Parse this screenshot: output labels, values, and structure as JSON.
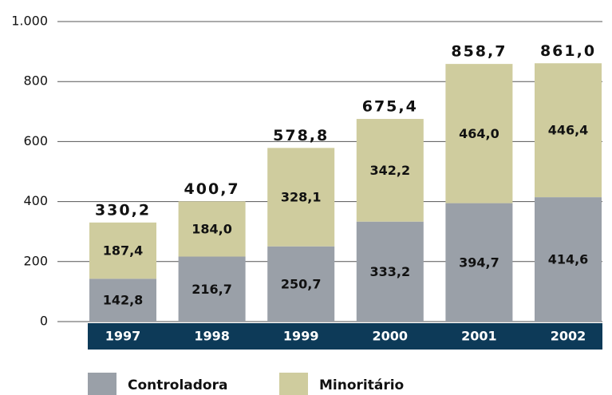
{
  "chart_data": {
    "type": "stacked_bar",
    "categories": [
      "1997",
      "1998",
      "1999",
      "2000",
      "2001",
      "2002"
    ],
    "series": [
      {
        "name": "Controladora",
        "color": "#9aa0a8",
        "values": [
          142.8,
          216.7,
          250.7,
          333.2,
          394.7,
          414.6
        ],
        "value_labels": [
          "142,8",
          "216,7",
          "250,7",
          "333,2",
          "394,7",
          "414,6"
        ]
      },
      {
        "name": "Minoritário",
        "color": "#cfcc9e",
        "values": [
          187.4,
          184.0,
          328.1,
          342.2,
          464.0,
          446.4
        ],
        "value_labels": [
          "187,4",
          "184,0",
          "328,1",
          "342,2",
          "464,0",
          "446,4"
        ]
      }
    ],
    "totals": [
      330.2,
      400.7,
      578.8,
      675.4,
      858.7,
      861.0
    ],
    "total_labels": [
      "330,2",
      "400,7",
      "578,8",
      "675,4",
      "858,7",
      "861,0"
    ],
    "ylim": [
      0,
      1000
    ],
    "yticks": [
      0,
      200,
      400,
      600,
      800,
      {
        "value": 1000,
        "label": "1.000"
      }
    ],
    "grid": true
  }
}
